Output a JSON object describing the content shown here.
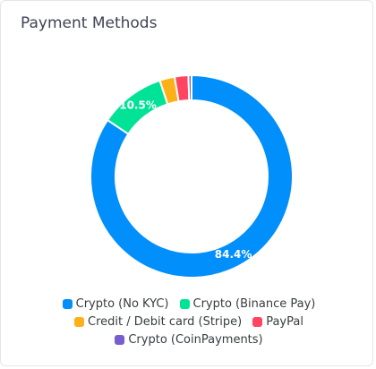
{
  "title": "Payment Methods",
  "chart_data": {
    "type": "donut",
    "categories": [
      "Crypto (No KYC)",
      "Crypto (Binance Pay)",
      "Credit / Debit card (Stripe)",
      "PayPal",
      "Crypto (CoinPayments)"
    ],
    "values": [
      84.4,
      10.5,
      2.4,
      2.2,
      0.5
    ],
    "value_labels": [
      "84.4%",
      "10.5%",
      null,
      null,
      null
    ],
    "colors": [
      "#008FFB",
      "#00E396",
      "#FEB019",
      "#FF4560",
      "#775DD0"
    ],
    "legend": "bottom"
  }
}
